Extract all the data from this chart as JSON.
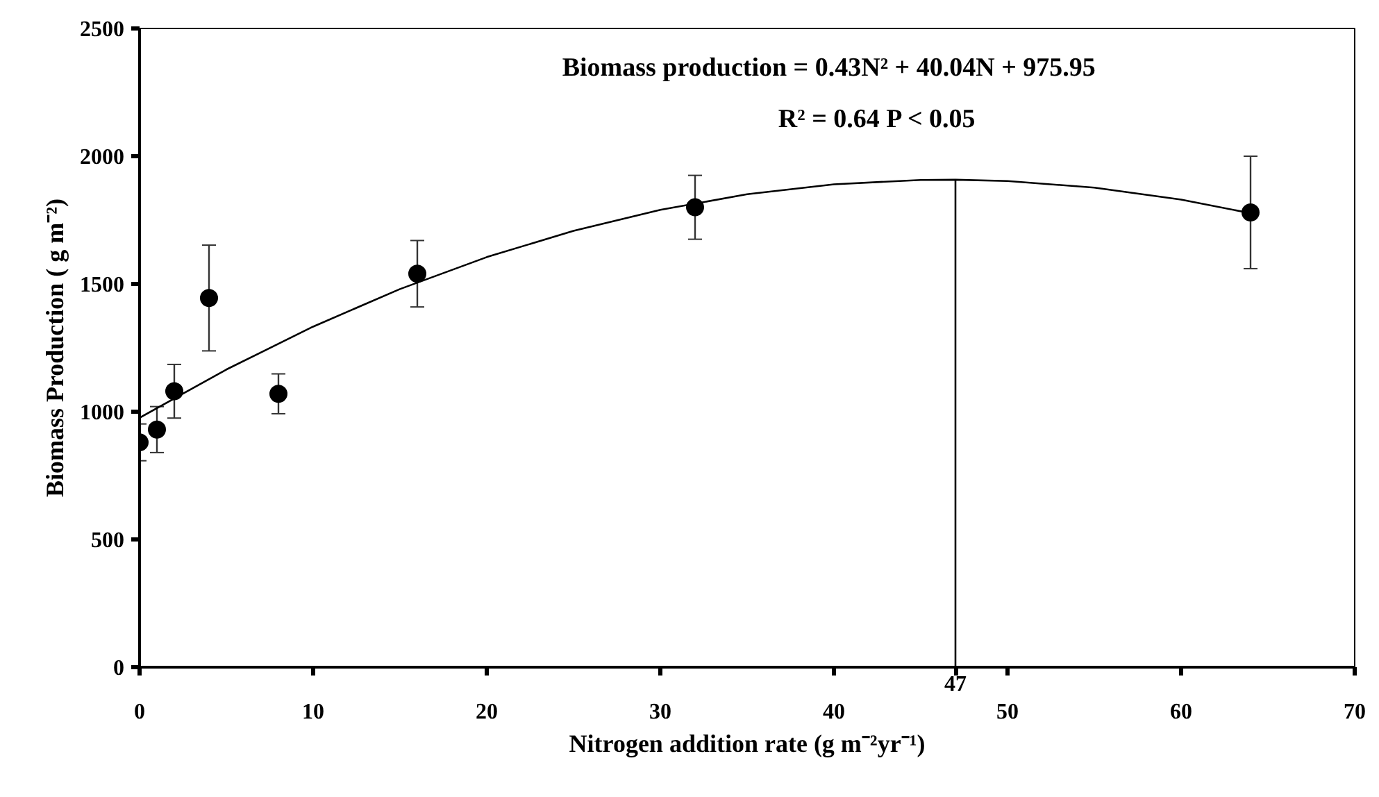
{
  "chart_data": {
    "type": "scatter",
    "xlabel": "Nitrogen addition rate (g m⁻²yr⁻¹)",
    "ylabel": "Biomass Production ( g m⁻²)",
    "annotations": [
      "Biomass production =  0.43N² + 40.04N + 975.95",
      "R² = 0.64  P < 0.05"
    ],
    "series": [
      {
        "color": "#000000",
        "marker": "circle",
        "x": [
          0,
          1,
          2,
          4,
          8,
          16,
          32,
          64
        ],
        "values": [
          880,
          930,
          1080,
          1445,
          1070,
          1540,
          1800,
          1780
        ],
        "errors": [
          72,
          90,
          105,
          207,
          78,
          130,
          125,
          220
        ]
      },
      {
        "type": "line",
        "color": "#000000",
        "marker": "none",
        "x": [
          0,
          5,
          10,
          15,
          20,
          25,
          30,
          35,
          40,
          45,
          47,
          50,
          55,
          60,
          64
        ],
        "values": [
          976,
          1165,
          1333,
          1480,
          1605,
          1708,
          1790,
          1851,
          1890,
          1907,
          1908,
          1903,
          1877,
          1830,
          1777
        ]
      }
    ],
    "ref_lines": [
      {
        "axis": "x",
        "value": 47,
        "label": "47",
        "color": "#000000"
      }
    ],
    "xlim": [
      0,
      70
    ],
    "xticks": [
      0,
      10,
      20,
      30,
      40,
      50,
      60,
      70
    ],
    "ylim": [
      0,
      2500
    ],
    "yticks": [
      0,
      500,
      1000,
      1500,
      2000,
      2500
    ],
    "grid": false
  }
}
